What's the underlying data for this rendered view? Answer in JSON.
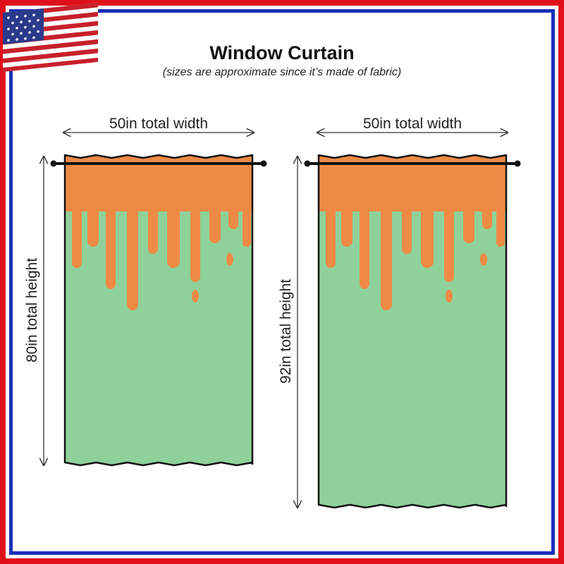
{
  "header": {
    "title": "Window Curtain",
    "subtitle": "(sizes are approximate since it’s made of fabric)"
  },
  "curtains": [
    {
      "width_label": "50in total width",
      "height_label": "80in total height"
    },
    {
      "width_label": "50in total width",
      "height_label": "92in total height"
    }
  ]
}
